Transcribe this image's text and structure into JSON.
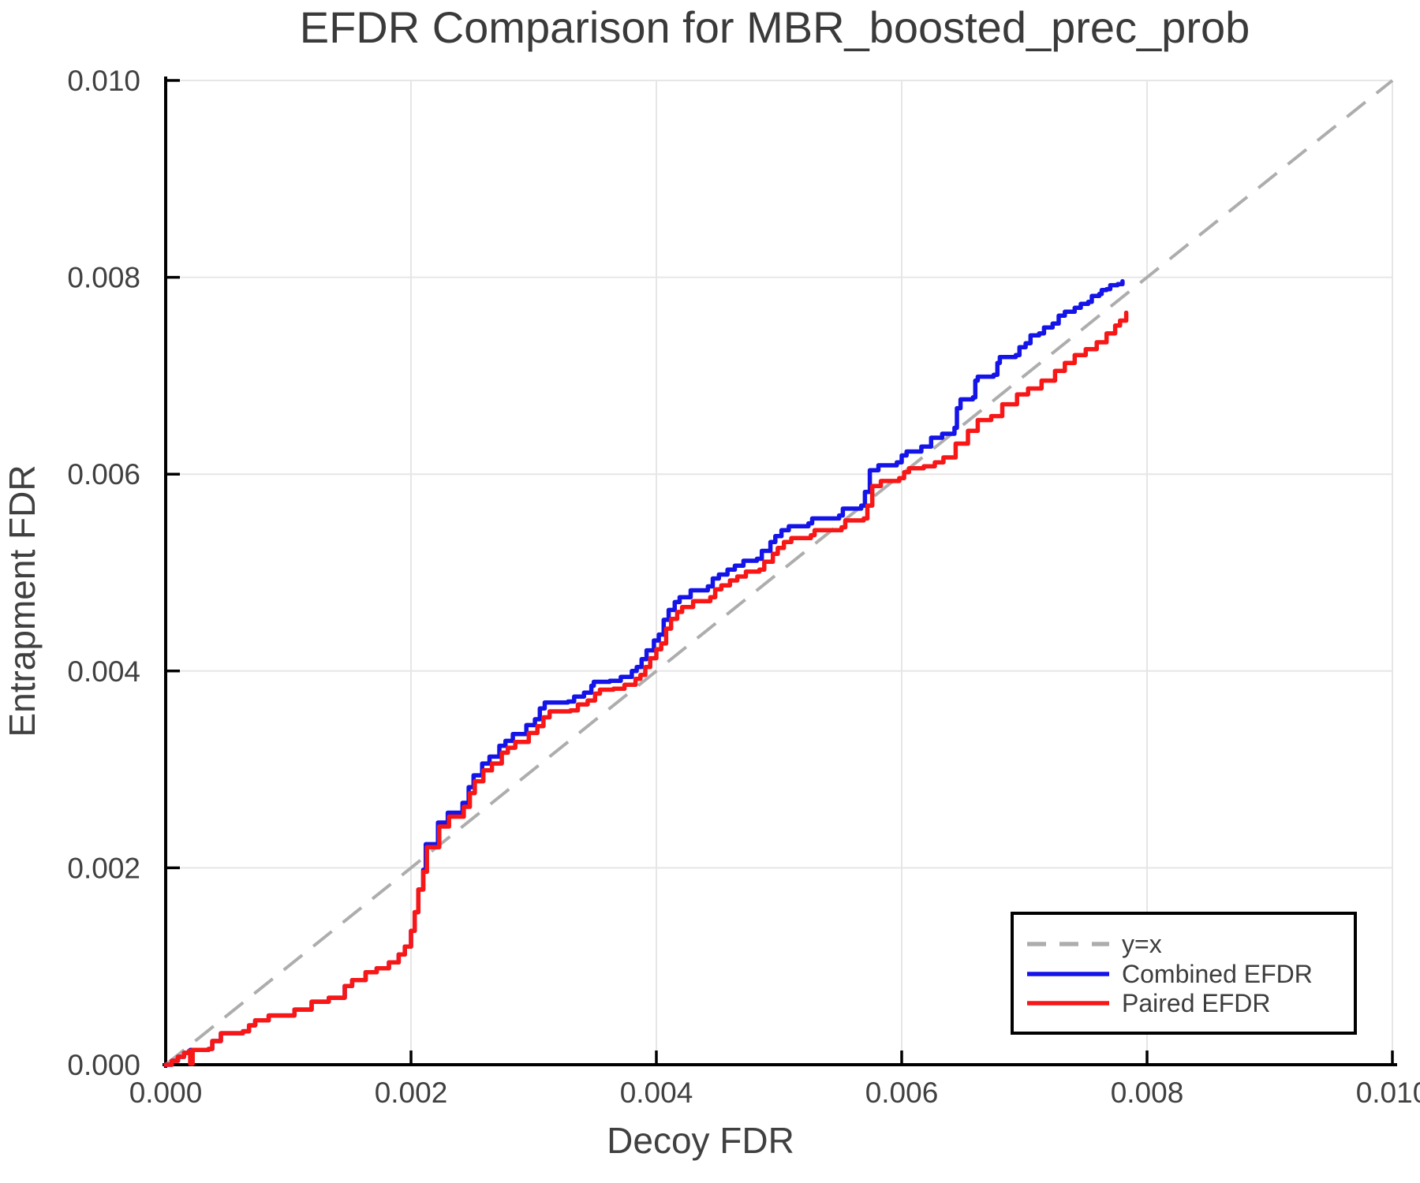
{
  "chart_data": {
    "type": "line",
    "title": "EFDR Comparison for MBR_boosted_prec_prob",
    "xlabel": "Decoy FDR",
    "ylabel": "Entrapment FDR",
    "xlim": [
      0.0,
      0.01
    ],
    "ylim": [
      0.0,
      0.01
    ],
    "grid": true,
    "x_ticks": [
      0.0,
      0.002,
      0.004,
      0.006,
      0.008,
      0.01
    ],
    "x_tick_labels": [
      "0.000",
      "0.002",
      "0.004",
      "0.006",
      "0.008",
      "0.010"
    ],
    "y_ticks": [
      0.0,
      0.002,
      0.004,
      0.006,
      0.008,
      0.01
    ],
    "y_tick_labels": [
      "0.000",
      "0.002",
      "0.004",
      "0.006",
      "0.008",
      "0.010"
    ],
    "reference_line": {
      "label": "y=x",
      "color": "#adadad",
      "from": [
        0.0,
        0.0
      ],
      "to": [
        0.01,
        0.01
      ]
    },
    "legend": {
      "position": "bottom-right",
      "entries": [
        {
          "label": "y=x",
          "color": "#adadad",
          "dashed": true
        },
        {
          "label": "Combined EFDR",
          "color": "#1414e8",
          "dashed": false
        },
        {
          "label": "Paired EFDR",
          "color": "#f71717",
          "dashed": false
        }
      ]
    },
    "series": [
      {
        "name": "Combined EFDR",
        "color": "#1414e8",
        "points": [
          [
            0.0,
            0.0
          ],
          [
            5e-05,
            4e-05
          ],
          [
            0.0001,
            8e-05
          ],
          [
            0.00015,
            0.00012
          ],
          [
            0.0002,
            0.00015
          ],
          [
            0.00035,
            0.00016
          ],
          [
            0.00038,
            0.00024
          ],
          [
            0.00045,
            0.00032
          ],
          [
            0.00063,
            0.00034
          ],
          [
            0.00068,
            0.0004
          ],
          [
            0.00073,
            0.00045
          ],
          [
            0.00084,
            0.0005
          ],
          [
            0.00105,
            0.00056
          ],
          [
            0.00119,
            0.00064
          ],
          [
            0.00133,
            0.00068
          ],
          [
            0.00146,
            0.0008
          ],
          [
            0.00152,
            0.00086
          ],
          [
            0.00163,
            0.00094
          ],
          [
            0.00172,
            0.00098
          ],
          [
            0.00182,
            0.00104
          ],
          [
            0.0019,
            0.00112
          ],
          [
            0.00195,
            0.0012
          ],
          [
            0.002,
            0.00136
          ],
          [
            0.00203,
            0.00155
          ],
          [
            0.00206,
            0.00178
          ],
          [
            0.0021,
            0.00198
          ],
          [
            0.00212,
            0.00224
          ],
          [
            0.00222,
            0.00246
          ],
          [
            0.0023,
            0.00256
          ],
          [
            0.00242,
            0.00266
          ],
          [
            0.00247,
            0.00282
          ],
          [
            0.00251,
            0.00294
          ],
          [
            0.00258,
            0.00306
          ],
          [
            0.00264,
            0.00313
          ],
          [
            0.00272,
            0.00324
          ],
          [
            0.00277,
            0.00329
          ],
          [
            0.00283,
            0.00336
          ],
          [
            0.00294,
            0.00345
          ],
          [
            0.00301,
            0.00351
          ],
          [
            0.00305,
            0.00362
          ],
          [
            0.00309,
            0.00368
          ],
          [
            0.00328,
            0.00369
          ],
          [
            0.00333,
            0.00374
          ],
          [
            0.00341,
            0.00378
          ],
          [
            0.00347,
            0.00385
          ],
          [
            0.00349,
            0.00389
          ],
          [
            0.00362,
            0.0039
          ],
          [
            0.00371,
            0.00394
          ],
          [
            0.0038,
            0.004
          ],
          [
            0.00384,
            0.00404
          ],
          [
            0.00388,
            0.00412
          ],
          [
            0.00392,
            0.00421
          ],
          [
            0.00398,
            0.00431
          ],
          [
            0.00402,
            0.00437
          ],
          [
            0.00406,
            0.00452
          ],
          [
            0.0041,
            0.00462
          ],
          [
            0.00415,
            0.0047
          ],
          [
            0.00419,
            0.00475
          ],
          [
            0.00428,
            0.00482
          ],
          [
            0.00442,
            0.00486
          ],
          [
            0.00446,
            0.00494
          ],
          [
            0.00451,
            0.00498
          ],
          [
            0.00458,
            0.00503
          ],
          [
            0.00464,
            0.00507
          ],
          [
            0.00471,
            0.00512
          ],
          [
            0.00482,
            0.00514
          ],
          [
            0.00486,
            0.00522
          ],
          [
            0.00493,
            0.00531
          ],
          [
            0.00497,
            0.00537
          ],
          [
            0.00502,
            0.00543
          ],
          [
            0.00508,
            0.00547
          ],
          [
            0.00524,
            0.0055
          ],
          [
            0.00527,
            0.00555
          ],
          [
            0.00549,
            0.00558
          ],
          [
            0.00552,
            0.00565
          ],
          [
            0.00567,
            0.00568
          ],
          [
            0.0057,
            0.00582
          ],
          [
            0.00574,
            0.00604
          ],
          [
            0.00581,
            0.00609
          ],
          [
            0.00596,
            0.00612
          ],
          [
            0.006,
            0.00619
          ],
          [
            0.00604,
            0.00623
          ],
          [
            0.00616,
            0.00628
          ],
          [
            0.00624,
            0.00637
          ],
          [
            0.00633,
            0.00641
          ],
          [
            0.00643,
            0.00647
          ],
          [
            0.00645,
            0.00667
          ],
          [
            0.00648,
            0.00676
          ],
          [
            0.00658,
            0.00678
          ],
          [
            0.0066,
            0.00695
          ],
          [
            0.00662,
            0.00699
          ],
          [
            0.00675,
            0.00701
          ],
          [
            0.00678,
            0.00713
          ],
          [
            0.0068,
            0.00719
          ],
          [
            0.00693,
            0.00721
          ],
          [
            0.00696,
            0.00729
          ],
          [
            0.00701,
            0.00733
          ],
          [
            0.00705,
            0.00741
          ],
          [
            0.00712,
            0.00743
          ],
          [
            0.00716,
            0.00749
          ],
          [
            0.00723,
            0.00753
          ],
          [
            0.00728,
            0.00761
          ],
          [
            0.00733,
            0.00765
          ],
          [
            0.00741,
            0.00769
          ],
          [
            0.00746,
            0.00773
          ],
          [
            0.00752,
            0.00775
          ],
          [
            0.00755,
            0.00781
          ],
          [
            0.00761,
            0.00783
          ],
          [
            0.00763,
            0.00787
          ],
          [
            0.00767,
            0.00788
          ],
          [
            0.0077,
            0.00792
          ],
          [
            0.00776,
            0.00793
          ],
          [
            0.0078,
            0.00796
          ]
        ]
      },
      {
        "name": "Paired EFDR",
        "color": "#f71717",
        "points": [
          [
            0.0,
            0.0
          ],
          [
            5e-05,
            4e-05
          ],
          [
            0.0001,
            8e-05
          ],
          [
            0.00015,
            0.00012
          ],
          [
            0.00019,
            0.00014
          ],
          [
            0.0002,
            1e-05
          ],
          [
            0.00022,
            0.00015
          ],
          [
            0.00035,
            0.00016
          ],
          [
            0.00038,
            0.00024
          ],
          [
            0.00045,
            0.00032
          ],
          [
            0.00063,
            0.00034
          ],
          [
            0.00068,
            0.0004
          ],
          [
            0.00073,
            0.00045
          ],
          [
            0.00084,
            0.0005
          ],
          [
            0.00105,
            0.00056
          ],
          [
            0.00119,
            0.00064
          ],
          [
            0.00133,
            0.00068
          ],
          [
            0.00146,
            0.0008
          ],
          [
            0.00152,
            0.00086
          ],
          [
            0.00163,
            0.00094
          ],
          [
            0.00172,
            0.00098
          ],
          [
            0.00182,
            0.00104
          ],
          [
            0.0019,
            0.00112
          ],
          [
            0.00195,
            0.0012
          ],
          [
            0.002,
            0.00136
          ],
          [
            0.00203,
            0.00155
          ],
          [
            0.00206,
            0.00178
          ],
          [
            0.0021,
            0.00196
          ],
          [
            0.00213,
            0.00221
          ],
          [
            0.00223,
            0.00242
          ],
          [
            0.00231,
            0.00252
          ],
          [
            0.00243,
            0.00262
          ],
          [
            0.00248,
            0.00276
          ],
          [
            0.00252,
            0.00288
          ],
          [
            0.00259,
            0.00299
          ],
          [
            0.00266,
            0.00306
          ],
          [
            0.00274,
            0.00317
          ],
          [
            0.00279,
            0.00322
          ],
          [
            0.00285,
            0.00328
          ],
          [
            0.00296,
            0.00337
          ],
          [
            0.00303,
            0.00344
          ],
          [
            0.00308,
            0.00353
          ],
          [
            0.00313,
            0.00359
          ],
          [
            0.0033,
            0.0036
          ],
          [
            0.00336,
            0.00366
          ],
          [
            0.00344,
            0.0037
          ],
          [
            0.0035,
            0.00377
          ],
          [
            0.00354,
            0.00381
          ],
          [
            0.00365,
            0.00382
          ],
          [
            0.00374,
            0.00386
          ],
          [
            0.00383,
            0.00392
          ],
          [
            0.00387,
            0.00396
          ],
          [
            0.00391,
            0.00404
          ],
          [
            0.00395,
            0.00413
          ],
          [
            0.004,
            0.00422
          ],
          [
            0.00404,
            0.00428
          ],
          [
            0.00408,
            0.00443
          ],
          [
            0.00412,
            0.00453
          ],
          [
            0.00417,
            0.0046
          ],
          [
            0.00421,
            0.00465
          ],
          [
            0.0043,
            0.00471
          ],
          [
            0.00444,
            0.00475
          ],
          [
            0.00448,
            0.00483
          ],
          [
            0.00453,
            0.00487
          ],
          [
            0.0046,
            0.00492
          ],
          [
            0.00466,
            0.00496
          ],
          [
            0.00473,
            0.00501
          ],
          [
            0.00484,
            0.00503
          ],
          [
            0.00488,
            0.00511
          ],
          [
            0.00495,
            0.00519
          ],
          [
            0.00499,
            0.00525
          ],
          [
            0.00504,
            0.00531
          ],
          [
            0.0051,
            0.00535
          ],
          [
            0.00526,
            0.00538
          ],
          [
            0.00529,
            0.00543
          ],
          [
            0.00551,
            0.00546
          ],
          [
            0.00554,
            0.00553
          ],
          [
            0.00569,
            0.00555
          ],
          [
            0.00572,
            0.00568
          ],
          [
            0.00576,
            0.00588
          ],
          [
            0.00583,
            0.00593
          ],
          [
            0.00598,
            0.00596
          ],
          [
            0.00602,
            0.00602
          ],
          [
            0.00606,
            0.00606
          ],
          [
            0.00618,
            0.00608
          ],
          [
            0.00627,
            0.00612
          ],
          [
            0.00634,
            0.00617
          ],
          [
            0.00644,
            0.00631
          ],
          [
            0.00654,
            0.00644
          ],
          [
            0.00662,
            0.00655
          ],
          [
            0.00673,
            0.00659
          ],
          [
            0.00682,
            0.00671
          ],
          [
            0.00694,
            0.00681
          ],
          [
            0.00703,
            0.00687
          ],
          [
            0.00714,
            0.00695
          ],
          [
            0.00725,
            0.00705
          ],
          [
            0.00733,
            0.00713
          ],
          [
            0.00741,
            0.00721
          ],
          [
            0.0075,
            0.00727
          ],
          [
            0.00759,
            0.00734
          ],
          [
            0.00767,
            0.00743
          ],
          [
            0.00774,
            0.00751
          ],
          [
            0.00778,
            0.00756
          ],
          [
            0.00783,
            0.00764
          ]
        ]
      }
    ]
  }
}
